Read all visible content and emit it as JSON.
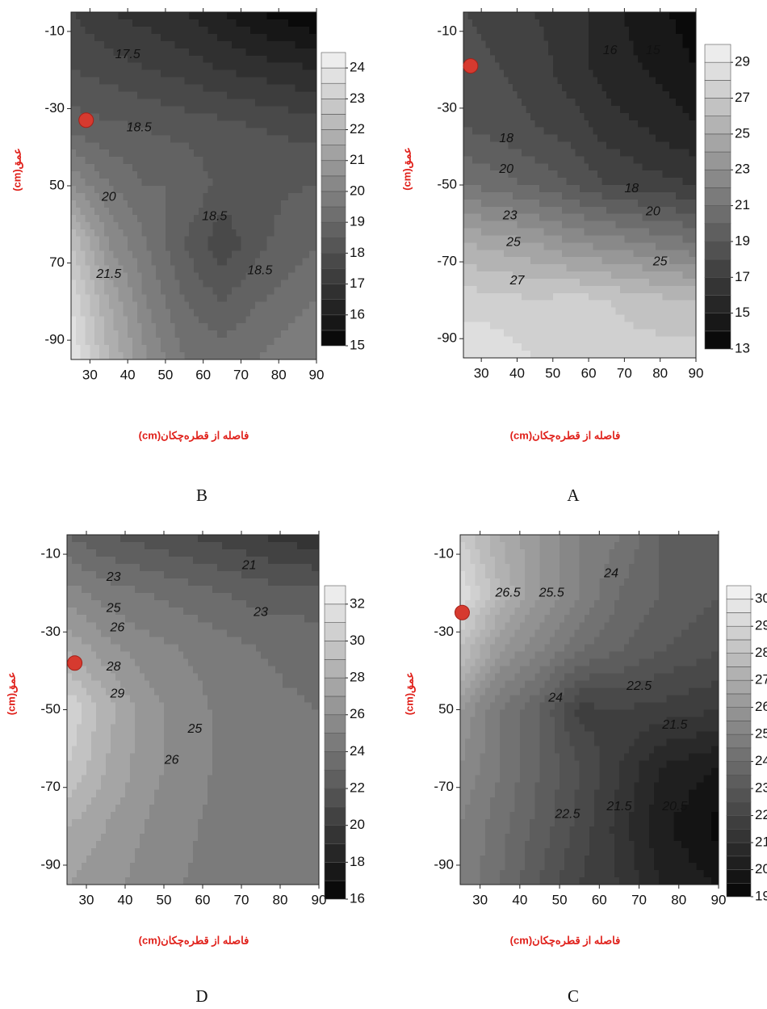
{
  "chart_data": [
    {
      "type": "contour",
      "panel": "B",
      "xlabel": "فاصله از قطره‌چکان(cm)",
      "ylabel": "عمق(cm)",
      "xlim": [
        25,
        90
      ],
      "ylim": [
        -95,
        -5
      ],
      "xticks": [
        30,
        40,
        50,
        60,
        70,
        80,
        90
      ],
      "yticks": [
        -10,
        -30,
        {
          "value": -50,
          "label": "50"
        },
        {
          "value": -70,
          "label": "70"
        },
        -90
      ],
      "clim": [
        15,
        24.5
      ],
      "cticks": [
        15,
        16,
        17,
        18,
        19,
        20,
        21,
        22,
        23,
        24
      ],
      "contour_interval": 0.5,
      "x": [
        25,
        35,
        45,
        55,
        65,
        75,
        90
      ],
      "y": [
        -5,
        -20,
        -35,
        -50,
        -65,
        -80,
        -95
      ],
      "z": [
        [
          17.5,
          17,
          16.8,
          16.5,
          16,
          15.5,
          15
        ],
        [
          18,
          17.8,
          17.5,
          17.3,
          17,
          16.8,
          16.5
        ],
        [
          18.8,
          18.6,
          18.5,
          18.3,
          18.2,
          18,
          17.8
        ],
        [
          20.5,
          19.5,
          19,
          19,
          18.3,
          18.4,
          18.5
        ],
        [
          22.5,
          20.5,
          19.5,
          18.5,
          17.6,
          18.4,
          19
        ],
        [
          23.5,
          21.5,
          20,
          19,
          18.5,
          19,
          19.5
        ],
        [
          24,
          22,
          20.5,
          19.5,
          19.3,
          19.5,
          20
        ]
      ],
      "contour_labels": [
        {
          "value": 17.5,
          "x": 40,
          "y": -16
        },
        {
          "value": 18.5,
          "x": 43,
          "y": -35
        },
        {
          "value": 20,
          "x": 35,
          "y": -53
        },
        {
          "value": 18.5,
          "x": 63,
          "y": -58
        },
        {
          "value": 21.5,
          "x": 35,
          "y": -73
        },
        {
          "value": 18.5,
          "x": 75,
          "y": -72
        }
      ],
      "marker": {
        "x": 29,
        "y": -33,
        "color": "#d63a2f"
      }
    },
    {
      "type": "contour",
      "panel": "A",
      "xlabel": "فاصله از قطره‌چکان(cm)",
      "ylabel": "عمق(cm)",
      "xlim": [
        25,
        90
      ],
      "ylim": [
        -95,
        -5
      ],
      "xticks": [
        30,
        40,
        50,
        60,
        70,
        80,
        90
      ],
      "yticks": [
        -10,
        -30,
        -50,
        -70,
        -90
      ],
      "clim": [
        13,
        30
      ],
      "cticks": [
        13,
        15,
        17,
        19,
        21,
        23,
        25,
        27,
        29
      ],
      "contour_interval": 1,
      "x": [
        25,
        35,
        45,
        55,
        65,
        75,
        90
      ],
      "y": [
        -5,
        -20,
        -35,
        -50,
        -65,
        -80,
        -95
      ],
      "z": [
        [
          18,
          17.5,
          17,
          16.5,
          15.5,
          14.5,
          13.5
        ],
        [
          18.5,
          18,
          17.5,
          16.5,
          15.5,
          15,
          14
        ],
        [
          19,
          18.5,
          18,
          17.5,
          16.5,
          16,
          15
        ],
        [
          21,
          20.5,
          19.8,
          19,
          18,
          17.5,
          17
        ],
        [
          25,
          24.5,
          24,
          23,
          22.5,
          22,
          21
        ],
        [
          27.5,
          27.5,
          27,
          27.5,
          27,
          26.5,
          26
        ],
        [
          29,
          28.5,
          28,
          27.5,
          27.5,
          27.5,
          27.5
        ]
      ],
      "contour_labels": [
        {
          "value": 16,
          "x": 66,
          "y": -15
        },
        {
          "value": 15,
          "x": 78,
          "y": -15
        },
        {
          "value": 18,
          "x": 37,
          "y": -38
        },
        {
          "value": 20,
          "x": 37,
          "y": -46
        },
        {
          "value": 18,
          "x": 72,
          "y": -51
        },
        {
          "value": 23,
          "x": 38,
          "y": -58
        },
        {
          "value": 20,
          "x": 78,
          "y": -57
        },
        {
          "value": 25,
          "x": 39,
          "y": -65
        },
        {
          "value": 25,
          "x": 80,
          "y": -70
        },
        {
          "value": 27,
          "x": 40,
          "y": -75
        }
      ],
      "marker": {
        "x": 27,
        "y": -19,
        "color": "#d63a2f"
      }
    },
    {
      "type": "contour",
      "panel": "D",
      "xlabel": "فاصله از قطره‌چکان(cm)",
      "ylabel": "عمق(cm)",
      "xlim": [
        25,
        90
      ],
      "ylim": [
        -95,
        -5
      ],
      "xticks": [
        30,
        40,
        50,
        60,
        70,
        80,
        90
      ],
      "yticks": [
        -10,
        -30,
        -50,
        -70,
        -90
      ],
      "clim": [
        16,
        33
      ],
      "cticks": [
        16,
        18,
        20,
        22,
        24,
        26,
        28,
        30,
        32
      ],
      "contour_interval": 1,
      "x": [
        25,
        35,
        45,
        55,
        65,
        75,
        90
      ],
      "y": [
        -5,
        -20,
        -35,
        -50,
        -65,
        -80,
        -95
      ],
      "z": [
        [
          23,
          22,
          21.5,
          21,
          20.5,
          20,
          19
        ],
        [
          25.5,
          24.5,
          24,
          23.5,
          23,
          22.5,
          22.5
        ],
        [
          28,
          26.5,
          25.5,
          25,
          24.5,
          24,
          23.5
        ],
        [
          31,
          28.5,
          26.5,
          25.5,
          24.8,
          24.3,
          24
        ],
        [
          30,
          28,
          26.5,
          25.5,
          24.8,
          24.3,
          24
        ],
        [
          28,
          27,
          26,
          25.2,
          24.7,
          24.3,
          24
        ],
        [
          27,
          26.3,
          25.6,
          25,
          24.6,
          24.3,
          24
        ]
      ],
      "contour_labels": [
        {
          "value": 23,
          "x": 37,
          "y": -16
        },
        {
          "value": 21,
          "x": 72,
          "y": -13
        },
        {
          "value": 25,
          "x": 37,
          "y": -24
        },
        {
          "value": 26,
          "x": 38,
          "y": -29
        },
        {
          "value": 23,
          "x": 75,
          "y": -25
        },
        {
          "value": 28,
          "x": 37,
          "y": -39
        },
        {
          "value": 29,
          "x": 38,
          "y": -46
        },
        {
          "value": 25,
          "x": 58,
          "y": -55
        },
        {
          "value": 26,
          "x": 52,
          "y": -63
        }
      ],
      "marker": {
        "x": 27,
        "y": -38,
        "color": "#d63a2f"
      }
    },
    {
      "type": "contour",
      "panel": "C",
      "xlabel": "فاصله از قطره‌چکان(cm)",
      "ylabel": "عمق(cm)",
      "xlim": [
        25,
        90
      ],
      "ylim": [
        -95,
        -5
      ],
      "xticks": [
        30,
        40,
        50,
        60,
        70,
        80,
        90
      ],
      "yticks": [
        -10,
        -30,
        {
          "value": -50,
          "label": "50"
        },
        -70,
        -90
      ],
      "clim": [
        19,
        30.5
      ],
      "cticks": [
        19,
        20,
        21,
        22,
        23,
        24,
        25,
        26,
        27,
        28,
        29,
        30
      ],
      "contour_interval": 0.5,
      "x": [
        25,
        35,
        45,
        55,
        65,
        75,
        90
      ],
      "y": [
        -5,
        -20,
        -35,
        -50,
        -65,
        -80,
        -95
      ],
      "z": [
        [
          28.5,
          27,
          26,
          25,
          24.5,
          23.5,
          23
        ],
        [
          29.5,
          27.5,
          26,
          25,
          24,
          23.5,
          23
        ],
        [
          28,
          26,
          25,
          24,
          23.5,
          23,
          22.5
        ],
        [
          26,
          24.5,
          23.5,
          21.8,
          22,
          21.8,
          21.5
        ],
        [
          25.5,
          24.5,
          23.5,
          22.5,
          21.5,
          20.5,
          20
        ],
        [
          25,
          24.2,
          23.3,
          22.3,
          21.3,
          20.2,
          19.3
        ],
        [
          25,
          24,
          23,
          22,
          21.5,
          20.5,
          20
        ]
      ],
      "contour_labels": [
        {
          "value": 26.5,
          "x": 37,
          "y": -20
        },
        {
          "value": 25.5,
          "x": 48,
          "y": -20
        },
        {
          "value": 24,
          "x": 63,
          "y": -15
        },
        {
          "value": 22.5,
          "x": 70,
          "y": -44
        },
        {
          "value": 24,
          "x": 49,
          "y": -47
        },
        {
          "value": 21.5,
          "x": 79,
          "y": -54
        },
        {
          "value": 22.5,
          "x": 52,
          "y": -77
        },
        {
          "value": 21.5,
          "x": 65,
          "y": -75
        },
        {
          "value": 20.5,
          "x": 79,
          "y": -75
        }
      ],
      "marker": {
        "x": 25.5,
        "y": -25,
        "color": "#d63a2f"
      }
    }
  ]
}
